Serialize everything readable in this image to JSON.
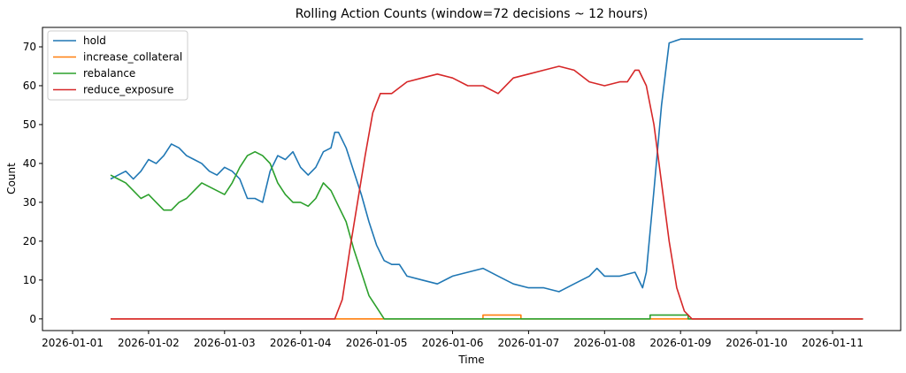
{
  "chart_data": {
    "type": "line",
    "title": "Rolling Action Counts (window=72 decisions ~ 12 hours)",
    "xlabel": "Time",
    "ylabel": "Count",
    "ylim": [
      -3,
      75
    ],
    "yticks": [
      0,
      10,
      20,
      30,
      40,
      50,
      60,
      70
    ],
    "xlim": [
      0,
      10.5
    ],
    "xticks": [
      0,
      1,
      2,
      3,
      4,
      5,
      6,
      7,
      8,
      9,
      10
    ],
    "xtick_labels": [
      "2026-01-01",
      "2026-01-02",
      "2026-01-03",
      "2026-01-04",
      "2026-01-05",
      "2026-01-06",
      "2026-01-07",
      "2026-01-08",
      "2026-01-09",
      "2026-01-10",
      "2026-01-11"
    ],
    "x_units": "days since 2026-01-01",
    "legend_position": "top-left",
    "series": [
      {
        "name": "hold",
        "color": "#1f77b4",
        "x": [
          0.5,
          0.6,
          0.7,
          0.8,
          0.9,
          1.0,
          1.1,
          1.2,
          1.3,
          1.4,
          1.5,
          1.6,
          1.7,
          1.8,
          1.9,
          2.0,
          2.1,
          2.2,
          2.3,
          2.4,
          2.5,
          2.6,
          2.7,
          2.8,
          2.9,
          3.0,
          3.1,
          3.2,
          3.3,
          3.4,
          3.45,
          3.5,
          3.6,
          3.7,
          3.8,
          3.9,
          4.0,
          4.1,
          4.2,
          4.3,
          4.4,
          4.6,
          4.8,
          5.0,
          5.2,
          5.4,
          5.6,
          5.8,
          6.0,
          6.2,
          6.4,
          6.6,
          6.8,
          6.9,
          7.0,
          7.2,
          7.4,
          7.5,
          7.55,
          7.65,
          7.75,
          7.85,
          8.0,
          9.0,
          10.0,
          10.4
        ],
        "values": [
          36,
          37,
          38,
          36,
          38,
          41,
          40,
          42,
          45,
          44,
          42,
          41,
          40,
          38,
          37,
          39,
          38,
          36,
          31,
          31,
          30,
          38,
          42,
          41,
          43,
          39,
          37,
          39,
          43,
          44,
          48,
          48,
          44,
          38,
          32,
          25,
          19,
          15,
          14,
          14,
          11,
          10,
          9,
          11,
          12,
          13,
          11,
          9,
          8,
          8,
          7,
          9,
          11,
          13,
          11,
          11,
          12,
          8,
          12,
          33,
          55,
          71,
          72,
          72,
          72,
          72
        ]
      },
      {
        "name": "increase_collateral",
        "color": "#ff7f0e",
        "x": [
          0.5,
          4.4,
          4.4,
          4.7,
          5.0,
          5.4,
          5.4,
          5.9,
          5.9,
          10.4
        ],
        "values": [
          0,
          0,
          0,
          0,
          0,
          0,
          1,
          1,
          0,
          0
        ]
      },
      {
        "name": "rebalance",
        "color": "#2ca02c",
        "x": [
          0.5,
          0.6,
          0.7,
          0.8,
          0.9,
          1.0,
          1.1,
          1.2,
          1.3,
          1.4,
          1.5,
          1.6,
          1.7,
          1.8,
          1.9,
          2.0,
          2.1,
          2.2,
          2.3,
          2.4,
          2.5,
          2.6,
          2.7,
          2.8,
          2.9,
          3.0,
          3.1,
          3.2,
          3.3,
          3.4,
          3.5,
          3.6,
          3.7,
          3.8,
          3.9,
          4.0,
          4.1,
          4.15,
          5.0,
          6.0,
          7.0,
          7.6,
          7.6,
          8.1,
          8.1,
          10.4
        ],
        "values": [
          37,
          36,
          35,
          33,
          31,
          32,
          30,
          28,
          28,
          30,
          31,
          33,
          35,
          34,
          33,
          32,
          35,
          39,
          42,
          43,
          42,
          40,
          35,
          32,
          30,
          30,
          29,
          31,
          35,
          33,
          29,
          25,
          18,
          12,
          6,
          3,
          0,
          0,
          0,
          0,
          0,
          0,
          1,
          1,
          0,
          0
        ]
      },
      {
        "name": "reduce_exposure",
        "color": "#d62728",
        "x": [
          0.5,
          3.45,
          3.55,
          3.65,
          3.75,
          3.85,
          3.95,
          4.05,
          4.2,
          4.4,
          4.6,
          4.8,
          5.0,
          5.2,
          5.4,
          5.6,
          5.8,
          6.0,
          6.2,
          6.4,
          6.6,
          6.8,
          7.0,
          7.2,
          7.3,
          7.4,
          7.45,
          7.55,
          7.65,
          7.75,
          7.85,
          7.95,
          8.05,
          8.15,
          10.4
        ],
        "values": [
          0,
          0,
          5,
          18,
          30,
          42,
          53,
          58,
          58,
          61,
          62,
          63,
          62,
          60,
          60,
          58,
          62,
          63,
          64,
          65,
          64,
          61,
          60,
          61,
          61,
          64,
          64,
          60,
          50,
          35,
          20,
          8,
          2,
          0,
          0
        ]
      }
    ]
  }
}
